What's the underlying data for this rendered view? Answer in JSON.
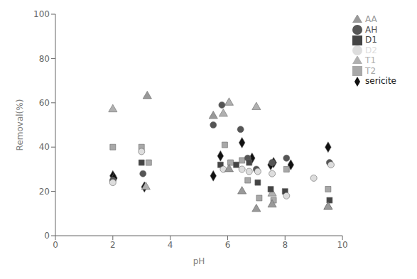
{
  "chart_data": {
    "type": "scatter",
    "title": "",
    "xlabel": "pH",
    "ylabel": "Removal(%)",
    "xlim": [
      0,
      10
    ],
    "ylim": [
      0,
      100
    ],
    "xticks": [
      0,
      2,
      4,
      6,
      8,
      10
    ],
    "yticks": [
      0,
      20,
      40,
      60,
      80,
      100
    ],
    "grid": false,
    "legend": "right",
    "series": [
      {
        "name": "sericite",
        "color": "#111111",
        "marker": "diamond",
        "x": [
          2.0,
          2.05,
          3.1,
          5.5,
          5.75,
          6.5,
          6.85,
          7.5,
          7.6,
          8.2,
          9.5
        ],
        "values": [
          27,
          26,
          22,
          27,
          36,
          42,
          35,
          32,
          33,
          32,
          40
        ]
      },
      {
        "name": "T1",
        "color": "#b0b0b0",
        "marker": "triangle",
        "x": [
          2.0,
          3.15,
          5.85,
          6.05,
          7.0,
          7.55,
          9.5
        ],
        "values": [
          57,
          22,
          55,
          60,
          58,
          19,
          13
        ]
      },
      {
        "name": "T2",
        "color": "#a8a8a8",
        "marker": "square",
        "x": [
          2.0,
          3.0,
          3.25,
          5.9,
          6.1,
          6.5,
          6.7,
          7.1,
          7.6,
          8.05,
          9.5
        ],
        "values": [
          40,
          40,
          33,
          41,
          33,
          34,
          25,
          17,
          16,
          30,
          21
        ]
      },
      {
        "name": "AH",
        "color": "#555555",
        "marker": "circle",
        "x": [
          2.0,
          3.05,
          5.5,
          5.8,
          6.45,
          6.7,
          7.0,
          7.55,
          8.05,
          9.55
        ],
        "values": [
          25,
          28,
          50,
          59,
          48,
          35,
          30,
          33,
          35,
          33
        ]
      },
      {
        "name": "D1",
        "color": "#444444",
        "marker": "square",
        "x": [
          3.0,
          5.75,
          6.3,
          6.75,
          7.05,
          7.5,
          8.0,
          9.55
        ],
        "values": [
          33,
          32,
          32,
          33,
          24,
          21,
          20,
          16
        ]
      },
      {
        "name": "D2",
        "color": "#dddddd",
        "marker": "circle",
        "x": [
          2.0,
          3.0,
          5.85,
          6.5,
          6.75,
          7.05,
          7.55,
          8.05,
          9.0,
          9.6
        ],
        "values": [
          24,
          38,
          30,
          30,
          29,
          29,
          28,
          18,
          26,
          32
        ]
      },
      {
        "name": "AA",
        "color": "#999999",
        "marker": "triangle",
        "x": [
          3.2,
          5.5,
          6.05,
          6.5,
          7.0,
          7.55,
          9.5
        ],
        "values": [
          63,
          54,
          30,
          20,
          12,
          14,
          13
        ]
      }
    ]
  }
}
